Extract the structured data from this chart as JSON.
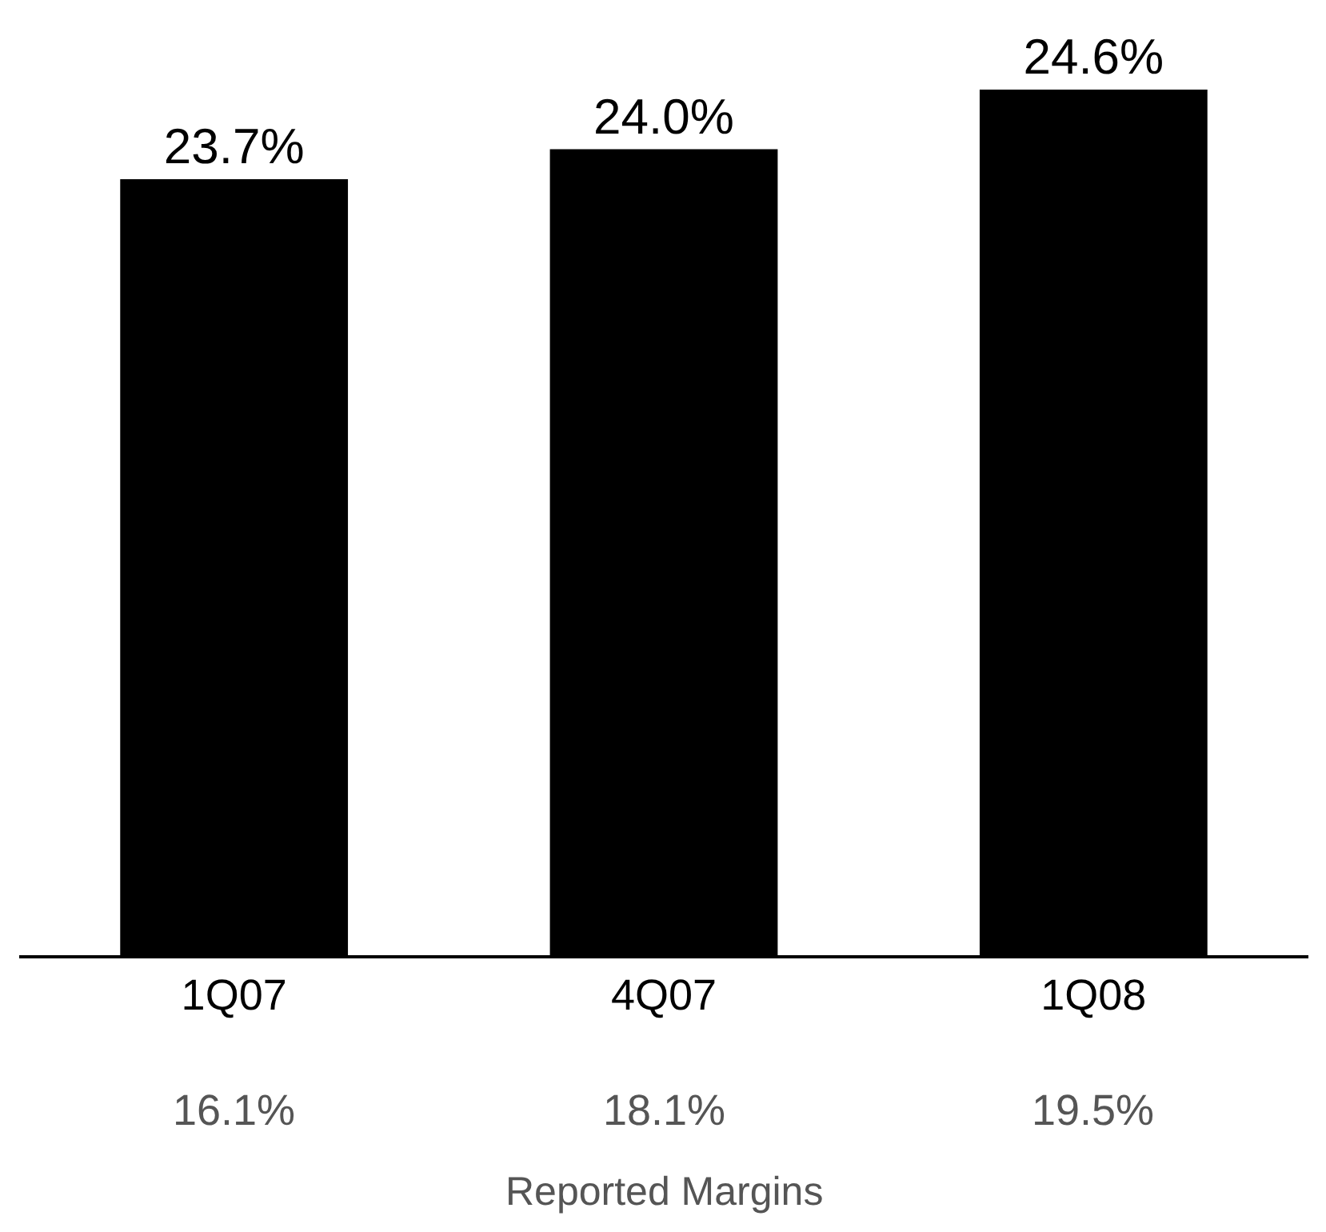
{
  "chart_data": {
    "type": "bar",
    "categories": [
      "1Q07",
      "4Q07",
      "1Q08"
    ],
    "values": [
      23.7,
      24.0,
      24.6
    ],
    "value_labels": [
      "23.7%",
      "24.0%",
      "24.6%"
    ],
    "color": "#000000",
    "ylim": [
      15.9,
      25.5
    ],
    "tick_labels": "x",
    "annotations": [
      "16.1%",
      "18.1%",
      "19.5%",
      "Reported Margins"
    ]
  }
}
